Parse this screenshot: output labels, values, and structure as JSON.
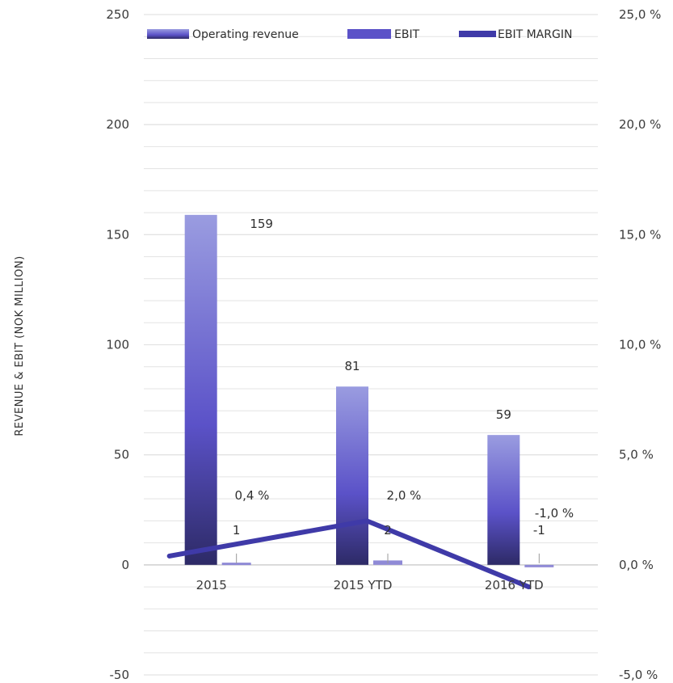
{
  "chart_data": {
    "type": "bar",
    "categories": [
      "2015",
      "2015  YTD",
      "2016  YTD"
    ],
    "series": [
      {
        "name": "Operating revenue",
        "type": "bar",
        "values": [
          159,
          81,
          59
        ],
        "labels": [
          "159",
          "81",
          "59"
        ]
      },
      {
        "name": "EBIT",
        "type": "bar",
        "values": [
          1,
          2,
          -1
        ],
        "labels": [
          "1",
          "2",
          "-1"
        ]
      },
      {
        "name": "EBIT MARGIN",
        "type": "line",
        "axis": "right",
        "values": [
          0.4,
          2.0,
          -1.0
        ],
        "labels": [
          "0,4  %",
          "2,0  %",
          "-1,0  %"
        ]
      }
    ],
    "ylabel": "REVENUE & EBIT (NOK MILLION)",
    "ylim": [
      -50,
      250
    ],
    "y_ticks": [
      "-50",
      "0",
      "50",
      "100",
      "150",
      "200",
      "250"
    ],
    "y2lim": [
      -5,
      25
    ],
    "y2_ticks": [
      "-5,0  %",
      "0,0  %",
      "5,0  %",
      "10,0  %",
      "15,0  %",
      "20,0  %",
      "25,0  %"
    ],
    "legend_position": "top",
    "grid": true,
    "colors": {
      "revenue_top": "#9a9ce0",
      "revenue_mid": "#5b52c8",
      "revenue_bottom": "#2d2a66",
      "ebit": "#8f8ad6",
      "margin_line": "#3f3aa8",
      "grid": "#e3e3e3",
      "zero_line": "#cfcfcf"
    }
  }
}
